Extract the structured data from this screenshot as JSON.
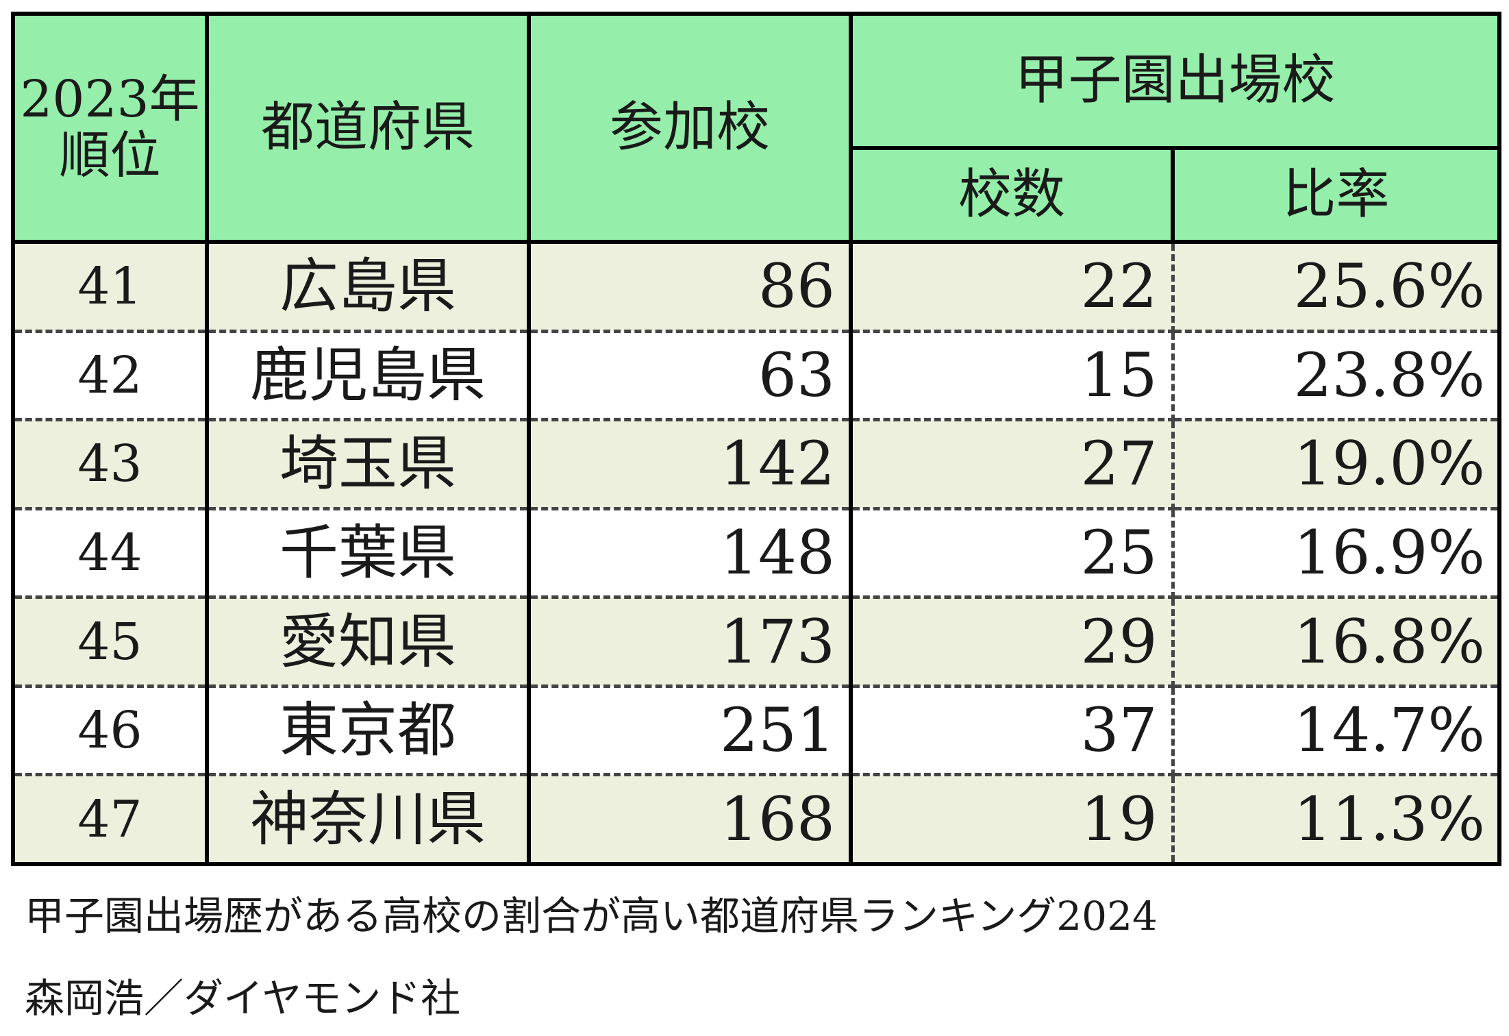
{
  "chart_data": {
    "type": "table",
    "headers": {
      "rank_line1": "2023年",
      "rank_line2": "順位",
      "prefecture": "都道府県",
      "participants": "参加校",
      "koshien_group": "甲子園出場校",
      "schools": "校数",
      "ratio": "比率"
    },
    "rows": [
      {
        "rank": "41",
        "prefecture": "広島県",
        "participants": 86,
        "schools": 22,
        "ratio": "25.6%"
      },
      {
        "rank": "42",
        "prefecture": "鹿児島県",
        "participants": 63,
        "schools": 15,
        "ratio": "23.8%"
      },
      {
        "rank": "43",
        "prefecture": "埼玉県",
        "participants": 142,
        "schools": 27,
        "ratio": "19.0%"
      },
      {
        "rank": "44",
        "prefecture": "千葉県",
        "participants": 148,
        "schools": 25,
        "ratio": "16.9%"
      },
      {
        "rank": "45",
        "prefecture": "愛知県",
        "participants": 173,
        "schools": 29,
        "ratio": "16.8%"
      },
      {
        "rank": "46",
        "prefecture": "東京都",
        "participants": 251,
        "schools": 37,
        "ratio": "14.7%"
      },
      {
        "rank": "47",
        "prefecture": "神奈川県",
        "participants": 168,
        "schools": 19,
        "ratio": "11.3%"
      }
    ],
    "title": "甲子園出場歴がある高校の割合が高い都道府県ランキング2024",
    "credit": "森岡浩／ダイヤモンド社"
  },
  "colors": {
    "header_bg": "#95efaa",
    "row_alt_bg": "#ecf0dd",
    "row_bg": "#ffffff"
  }
}
